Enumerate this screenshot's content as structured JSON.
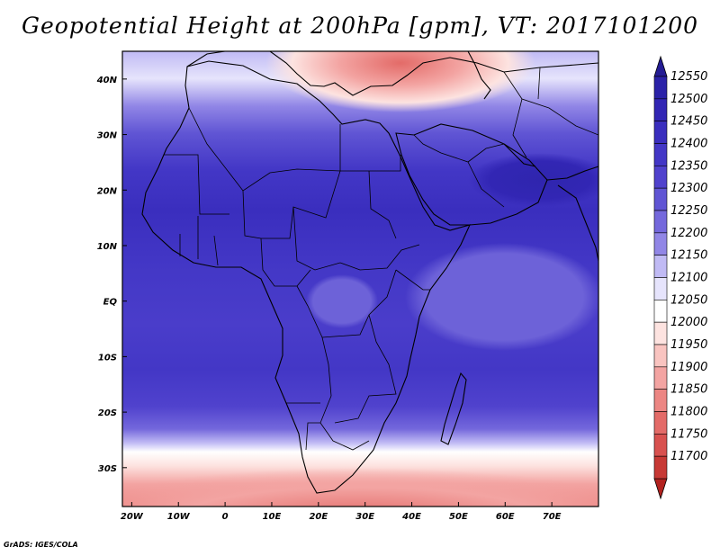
{
  "title": "Geopotential Height at 200hPa [gpm], VT: 2017101200",
  "credit": "GrADS: IGES/COLA",
  "map": {
    "lon_range": [
      -22,
      80
    ],
    "lat_range": [
      -37,
      45
    ],
    "lon_ticks": [
      {
        "value": -20,
        "label": "20W"
      },
      {
        "value": -10,
        "label": "10W"
      },
      {
        "value": 0,
        "label": "0"
      },
      {
        "value": 10,
        "label": "10E"
      },
      {
        "value": 20,
        "label": "20E"
      },
      {
        "value": 30,
        "label": "30E"
      },
      {
        "value": 40,
        "label": "40E"
      },
      {
        "value": 50,
        "label": "50E"
      },
      {
        "value": 60,
        "label": "60E"
      },
      {
        "value": 70,
        "label": "70E"
      }
    ],
    "lat_ticks": [
      {
        "value": 40,
        "label": "40N"
      },
      {
        "value": 30,
        "label": "30N"
      },
      {
        "value": 20,
        "label": "20N"
      },
      {
        "value": 10,
        "label": "10N"
      },
      {
        "value": 0,
        "label": "EQ"
      },
      {
        "value": -10,
        "label": "10S"
      },
      {
        "value": -20,
        "label": "20S"
      },
      {
        "value": -30,
        "label": "30S"
      }
    ]
  },
  "colorbar": {
    "levels": [
      {
        "label": "12550",
        "color": "#2b22a8"
      },
      {
        "label": "12500",
        "color": "#3226b4"
      },
      {
        "label": "12450",
        "color": "#3a2ebe"
      },
      {
        "label": "12400",
        "color": "#4337c6"
      },
      {
        "label": "12350",
        "color": "#5042cd"
      },
      {
        "label": "12300",
        "color": "#6055d4"
      },
      {
        "label": "12250",
        "color": "#7468dc"
      },
      {
        "label": "12200",
        "color": "#9186e6"
      },
      {
        "label": "12150",
        "color": "#c0baf4"
      },
      {
        "label": "12100",
        "color": "#e6e4fc"
      },
      {
        "label": "12050",
        "color": "#ffffff"
      },
      {
        "label": "12000",
        "color": "#fde3e0"
      },
      {
        "label": "11950",
        "color": "#f9c4c0"
      },
      {
        "label": "11900",
        "color": "#f3a4a2"
      },
      {
        "label": "11850",
        "color": "#ec8683"
      },
      {
        "label": "11800",
        "color": "#e36b68"
      },
      {
        "label": "11750",
        "color": "#d8514f"
      },
      {
        "label": "11700",
        "color": "#c73935"
      }
    ],
    "top_arrow_color": "#241c94",
    "bottom_arrow_color": "#b2221f"
  }
}
